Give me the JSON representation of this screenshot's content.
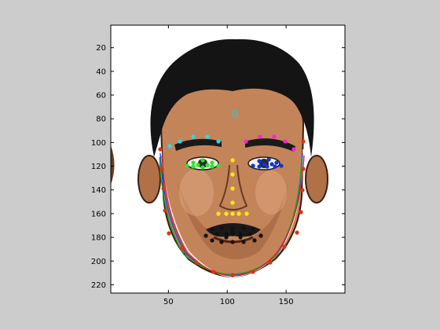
{
  "figure": {
    "background": "#cccccc",
    "axes": {
      "x_ticks": [
        50,
        100,
        150
      ],
      "y_ticks": [
        20,
        40,
        60,
        80,
        100,
        120,
        140,
        160,
        180,
        200,
        220
      ],
      "xlim": [
        1,
        200
      ],
      "ylim": [
        1,
        227
      ],
      "y_direction": "reversed"
    },
    "landmark_label": "0",
    "landmark_groups": [
      {
        "name": "right-eyebrow",
        "color": "#22ddee"
      },
      {
        "name": "left-eyebrow",
        "color": "#ff22dd"
      },
      {
        "name": "right-eye",
        "color": "#22ee22"
      },
      {
        "name": "left-eye",
        "color": "#1133dd"
      },
      {
        "name": "nose",
        "color": "#ffee00"
      },
      {
        "name": "mouth",
        "color": "#111111"
      },
      {
        "name": "jawline",
        "color": "#dd3311"
      }
    ],
    "fit_curve_colors": [
      "#ffffff",
      "#2244ee",
      "#22aa22",
      "#dd2222"
    ]
  }
}
